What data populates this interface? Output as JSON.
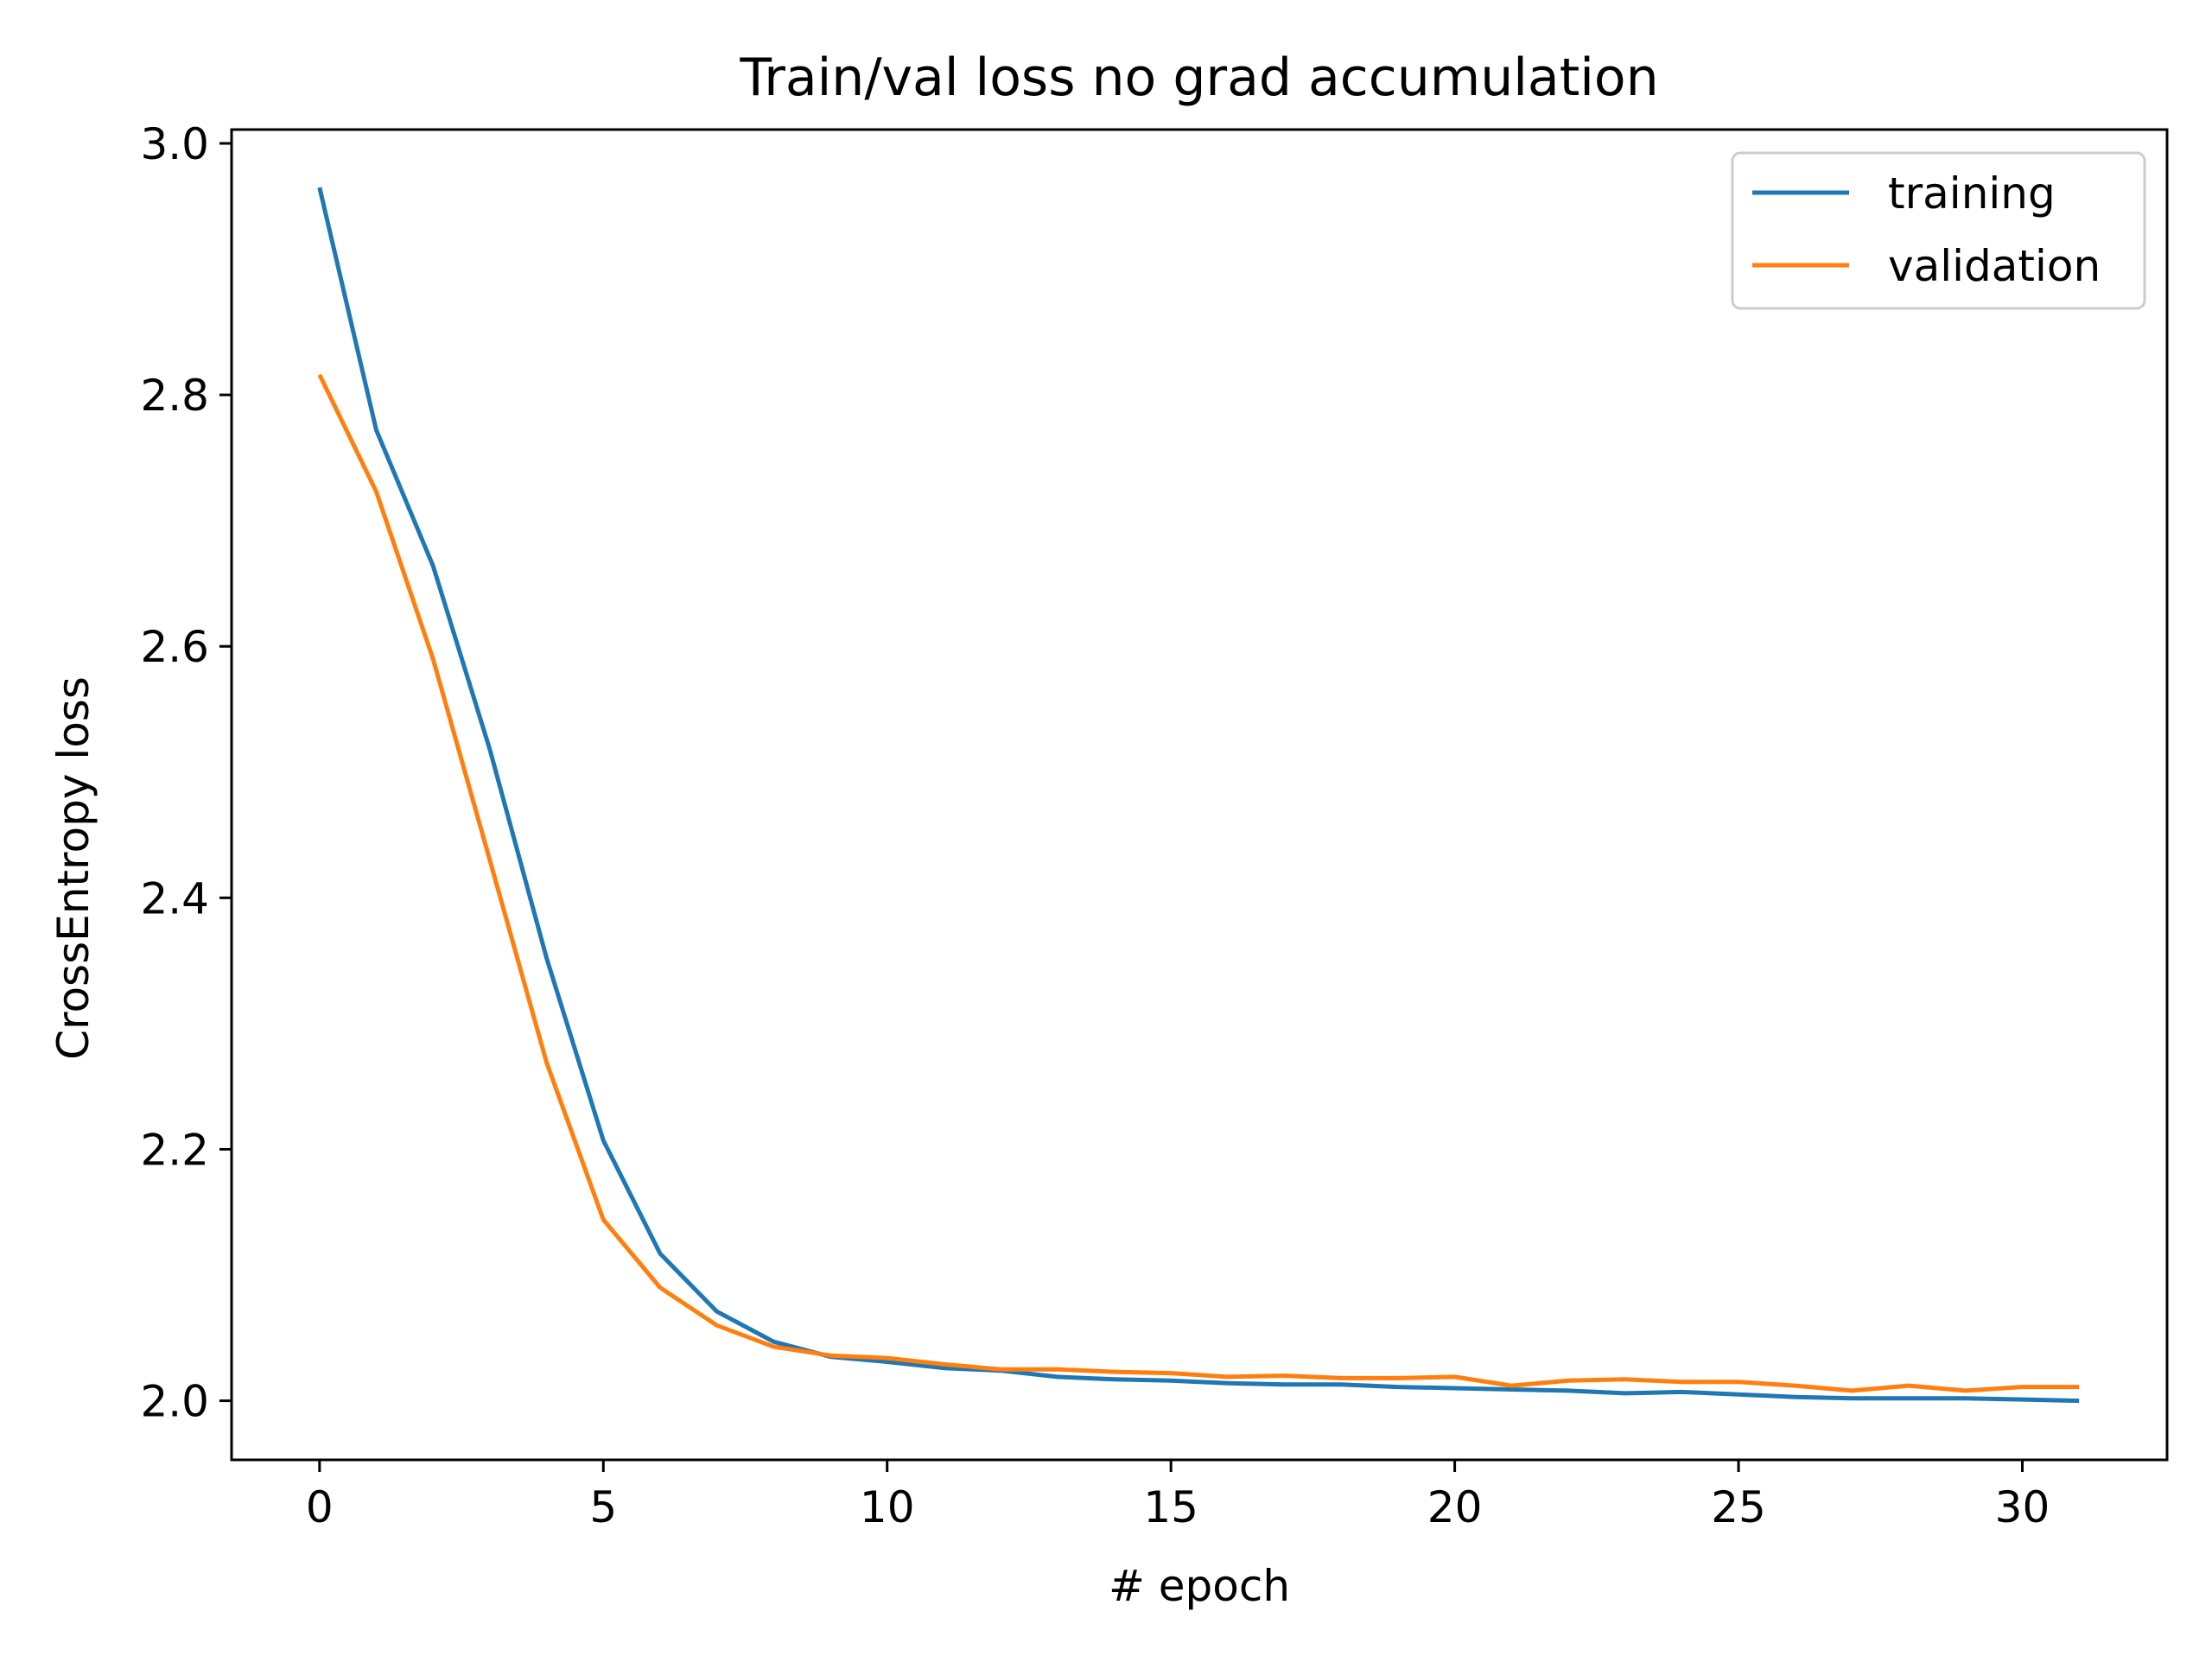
{
  "chart_data": {
    "type": "line",
    "title": "Train/val loss no grad accumulation",
    "xlabel": "# epoch",
    "ylabel": "CrossEntropy loss",
    "xlim": [
      -1.55,
      32.55
    ],
    "ylim": [
      1.953,
      3.011
    ],
    "xticks": [
      0,
      5,
      10,
      15,
      20,
      25,
      30
    ],
    "xtick_labels": [
      "0",
      "5",
      "10",
      "15",
      "20",
      "25",
      "30"
    ],
    "yticks": [
      2.0,
      2.2,
      2.4,
      2.6,
      2.8,
      3.0
    ],
    "ytick_labels": [
      "2.0",
      "2.2",
      "2.4",
      "2.6",
      "2.8",
      "3.0"
    ],
    "grid": false,
    "legend_position": "top-right",
    "x": [
      0,
      1,
      2,
      3,
      4,
      5,
      6,
      7,
      8,
      9,
      10,
      11,
      12,
      13,
      14,
      15,
      16,
      17,
      18,
      19,
      20,
      21,
      22,
      23,
      24,
      25,
      26,
      27,
      28,
      29,
      30,
      31
    ],
    "series": [
      {
        "name": "training",
        "color": "#1f77b4",
        "values": [
          2.965,
          2.772,
          2.664,
          2.518,
          2.352,
          2.207,
          2.117,
          2.071,
          2.047,
          2.035,
          2.031,
          2.026,
          2.024,
          2.019,
          2.017,
          2.016,
          2.014,
          2.013,
          2.013,
          2.011,
          2.01,
          2.009,
          2.008,
          2.006,
          2.007,
          2.005,
          2.003,
          2.002,
          2.002,
          2.002,
          2.001,
          2.0
        ]
      },
      {
        "name": "validation",
        "color": "#ff7f0e",
        "values": [
          2.816,
          2.723,
          2.59,
          2.43,
          2.269,
          2.144,
          2.09,
          2.06,
          2.043,
          2.036,
          2.034,
          2.029,
          2.025,
          2.025,
          2.023,
          2.022,
          2.019,
          2.02,
          2.018,
          2.018,
          2.019,
          2.012,
          2.016,
          2.017,
          2.015,
          2.015,
          2.012,
          2.008,
          2.012,
          2.008,
          2.011,
          2.011
        ]
      }
    ]
  }
}
